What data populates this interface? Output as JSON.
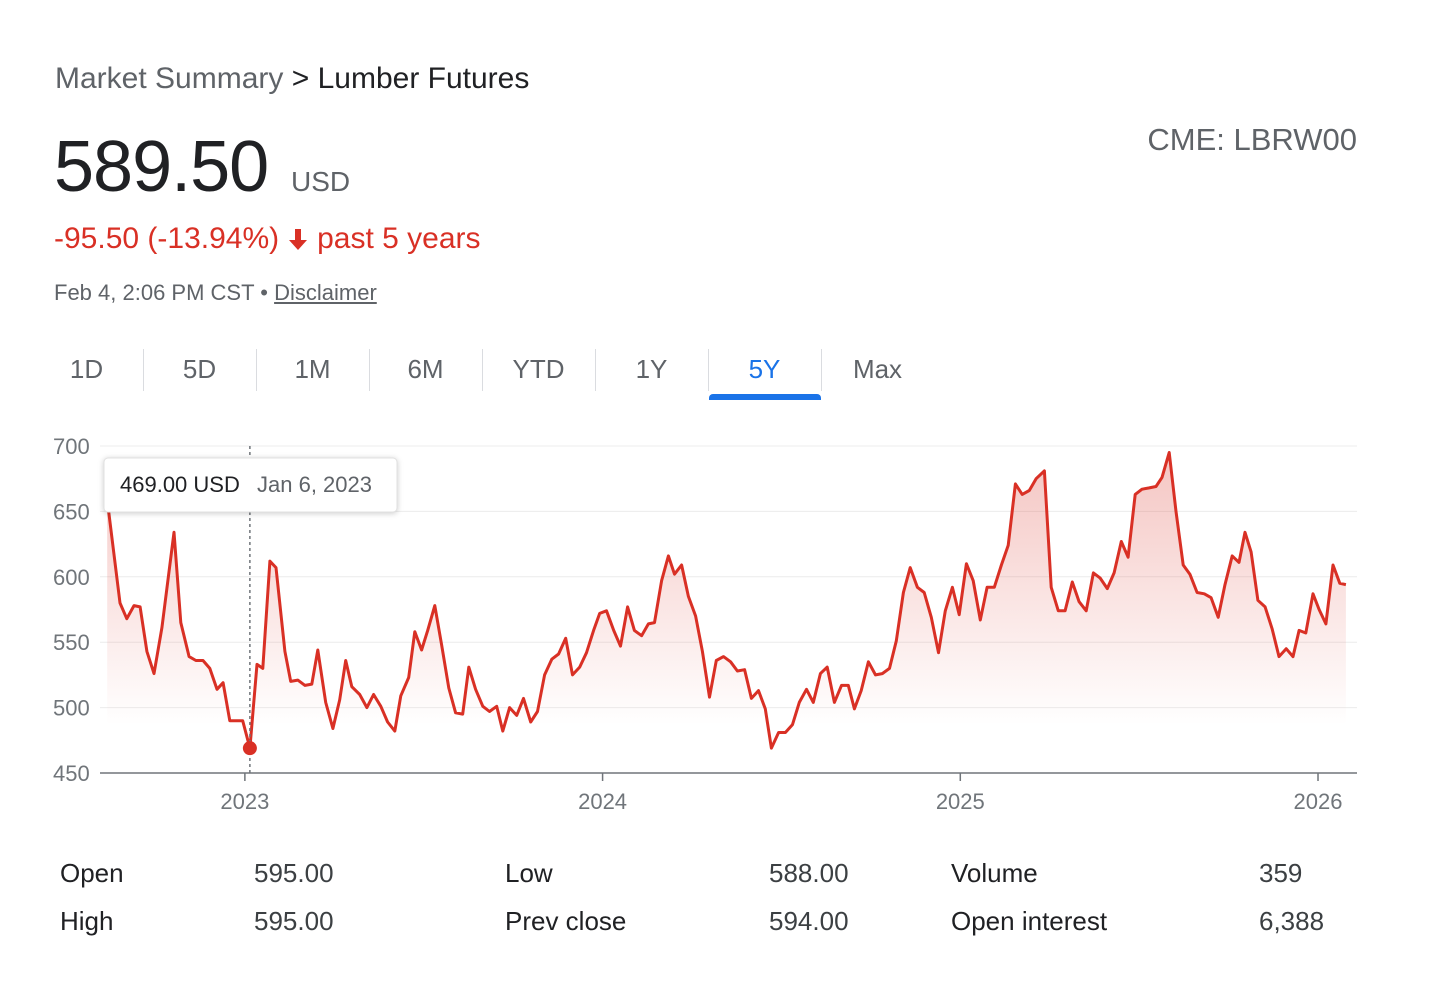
{
  "header": {
    "breadcrumb": {
      "parent": "Market Summary",
      "separator": ">",
      "current": "Lumber Futures"
    },
    "price": "589.50",
    "currency": "USD",
    "symbol": "CME: LBRW00",
    "change": "-95.50 (-13.94%)",
    "period": "past 5 years",
    "timestamp": "Feb 4, 2:06 PM CST",
    "bullet": "•",
    "disclaimer": "Disclaimer"
  },
  "tabs": {
    "items": [
      "1D",
      "5D",
      "1M",
      "6M",
      "YTD",
      "1Y",
      "5Y",
      "Max"
    ],
    "selected": "5Y"
  },
  "chart_data": {
    "type": "line",
    "x": [
      2022.615,
      2022.651,
      2022.67,
      2022.69,
      2022.707,
      2022.726,
      2022.746,
      2022.768,
      2022.802,
      2022.821,
      2022.844,
      2022.863,
      2022.883,
      2022.902,
      2022.922,
      2022.939,
      2022.958,
      2022.994,
      2023.014,
      2023.034,
      2023.05,
      2023.07,
      2023.087,
      2023.112,
      2023.128,
      2023.148,
      2023.168,
      2023.187,
      2023.204,
      2023.226,
      2023.246,
      2023.265,
      2023.282,
      2023.299,
      2023.321,
      2023.341,
      2023.36,
      2023.38,
      2023.399,
      2023.419,
      2023.436,
      2023.458,
      2023.475,
      2023.494,
      2023.511,
      2023.531,
      2023.55,
      2023.57,
      2023.589,
      2023.609,
      2023.626,
      2023.645,
      2023.665,
      2023.684,
      2023.704,
      2023.721,
      2023.74,
      2023.76,
      2023.779,
      2023.799,
      2023.818,
      2023.838,
      2023.858,
      2023.877,
      2023.897,
      2023.916,
      2023.936,
      2023.955,
      2023.975,
      2023.992,
      2024.011,
      2024.031,
      2024.05,
      2024.07,
      2024.089,
      2024.109,
      2024.128,
      2024.145,
      2024.165,
      2024.184,
      2024.201,
      2024.221,
      2024.24,
      2024.26,
      2024.279,
      2024.299,
      2024.318,
      2024.338,
      2024.358,
      2024.377,
      2024.397,
      2024.416,
      2024.436,
      2024.455,
      2024.472,
      2024.492,
      2024.511,
      2024.531,
      2024.55,
      2024.57,
      2024.589,
      2024.609,
      2024.628,
      2024.648,
      2024.668,
      2024.687,
      2024.704,
      2024.723,
      2024.743,
      2024.763,
      2024.782,
      2024.802,
      2024.821,
      2024.841,
      2024.86,
      2024.88,
      2024.899,
      2024.919,
      2024.939,
      2024.958,
      2024.978,
      2024.997,
      2025.017,
      2025.036,
      2025.056,
      2025.075,
      2025.095,
      2025.115,
      2025.134,
      2025.154,
      2025.173,
      2025.193,
      2025.212,
      2025.235,
      2025.254,
      2025.274,
      2025.293,
      2025.313,
      2025.332,
      2025.352,
      2025.372,
      2025.391,
      2025.411,
      2025.43,
      2025.45,
      2025.469,
      2025.489,
      2025.508,
      2025.528,
      2025.547,
      2025.564,
      2025.584,
      2025.603,
      2025.623,
      2025.642,
      2025.662,
      2025.682,
      2025.701,
      2025.721,
      2025.74,
      2025.76,
      2025.779,
      2025.796,
      2025.813,
      2025.832,
      2025.852,
      2025.872,
      2025.891,
      2025.911,
      2025.93,
      2025.947,
      2025.966,
      2025.986,
      2026.003,
      2026.022,
      2026.042,
      2026.061,
      2026.078
    ],
    "series": [
      {
        "name": "Lumber Futures",
        "color": "#d93025",
        "values": [
          659,
          580,
          568,
          578,
          577,
          543,
          526,
          561,
          634,
          565,
          539,
          536,
          536,
          530,
          514,
          519,
          490,
          490,
          469,
          533,
          530,
          612,
          607,
          543,
          520,
          521,
          517,
          518,
          544,
          504,
          484,
          506,
          536,
          516,
          510,
          500,
          510,
          501,
          489,
          482,
          509,
          523,
          558,
          544,
          559,
          578,
          548,
          515,
          496,
          495,
          531,
          514,
          501,
          497,
          501,
          482,
          500,
          494,
          507,
          489,
          497,
          525,
          537,
          541,
          553,
          525,
          531,
          542,
          559,
          572,
          574,
          559,
          547,
          577,
          559,
          555,
          564,
          565,
          597,
          616,
          602,
          609,
          585,
          570,
          543,
          508,
          536,
          539,
          535,
          528,
          529,
          507,
          513,
          499,
          469,
          481,
          481,
          487,
          504,
          514,
          504,
          526,
          531,
          504,
          517,
          517,
          499,
          513,
          535,
          525,
          526,
          530,
          551,
          588,
          607,
          592,
          588,
          569,
          542,
          574,
          592,
          571,
          610,
          597,
          567,
          592,
          592,
          609,
          624,
          671,
          663,
          666,
          675,
          681,
          592,
          574,
          574,
          596,
          581,
          574,
          603,
          599,
          591,
          603,
          627,
          615,
          663,
          667,
          668,
          669,
          676,
          695,
          650,
          609,
          602,
          588,
          587,
          584,
          569,
          594,
          616,
          611,
          634,
          619,
          582,
          577,
          560,
          539,
          545,
          539,
          559,
          557,
          587,
          575,
          564,
          609,
          595,
          594
        ]
      }
    ],
    "xlim": [
      2022.595,
      2026.109
    ],
    "xticks": [
      2023,
      2024,
      2025,
      2026
    ],
    "ylim": [
      450,
      700
    ],
    "yticks": [
      450,
      500,
      550,
      600,
      650,
      700
    ],
    "grid": true,
    "tooltip": {
      "text": "469.00 USD",
      "date": "Jan 6, 2023",
      "x": 2023.014,
      "y": 469
    }
  },
  "stats": {
    "rows": [
      [
        {
          "label": "Open",
          "value": "595.00"
        },
        {
          "label": "Low",
          "value": "588.00"
        },
        {
          "label": "Volume",
          "value": "359"
        }
      ],
      [
        {
          "label": "High",
          "value": "595.00"
        },
        {
          "label": "Prev close",
          "value": "594.00"
        },
        {
          "label": "Open interest",
          "value": "6,388"
        }
      ]
    ]
  }
}
